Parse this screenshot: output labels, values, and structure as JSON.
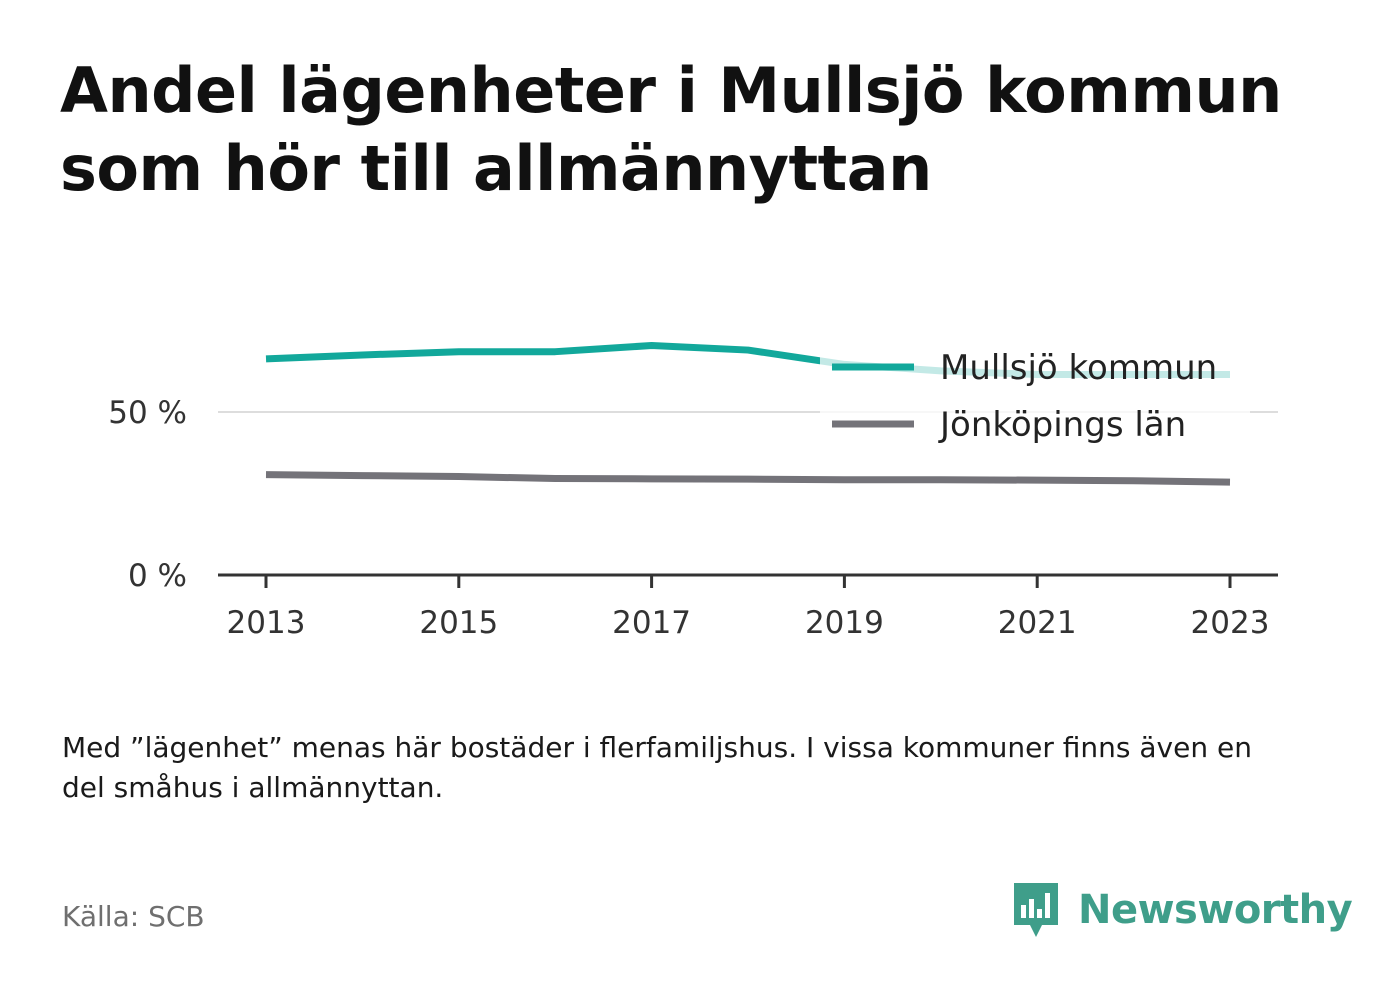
{
  "title": "Andel lägenheter i Mullsjö kommun som hör till allmännyttan",
  "note": "Med ”lägenhet” menas här bostäder i flerfamiljshus. I vissa kommuner finns även en del småhus i allmännyttan.",
  "source": "Källa: SCB",
  "brand": {
    "name": "Newsworthy",
    "color": "#3f9e8a",
    "icon": "newsworthy-bar-chart-speech-bubble-icon"
  },
  "chart_data": {
    "type": "line",
    "x": [
      2013,
      2014,
      2015,
      2016,
      2017,
      2018,
      2019,
      2020,
      2021,
      2022,
      2023
    ],
    "x_ticks": [
      "2013",
      "2015",
      "2017",
      "2019",
      "2021",
      "2023"
    ],
    "y_ticks": [
      {
        "value": 0,
        "label": "0 %"
      },
      {
        "value": 50,
        "label": "50 %"
      }
    ],
    "ylim": [
      0,
      80
    ],
    "grid": true,
    "legend_position": "top-right",
    "series": [
      {
        "name": "Mullsjö kommun",
        "color": "#12a89b",
        "values": [
          66.3,
          67.5,
          68.5,
          68.5,
          70.4,
          69.0,
          64.6,
          62.6,
          61.5,
          61.5,
          61.5
        ]
      },
      {
        "name": "Jönköpings län",
        "color": "#747379",
        "values": [
          30.8,
          30.5,
          30.2,
          29.6,
          29.5,
          29.4,
          29.2,
          29.2,
          29.1,
          28.9,
          28.5
        ]
      }
    ]
  }
}
